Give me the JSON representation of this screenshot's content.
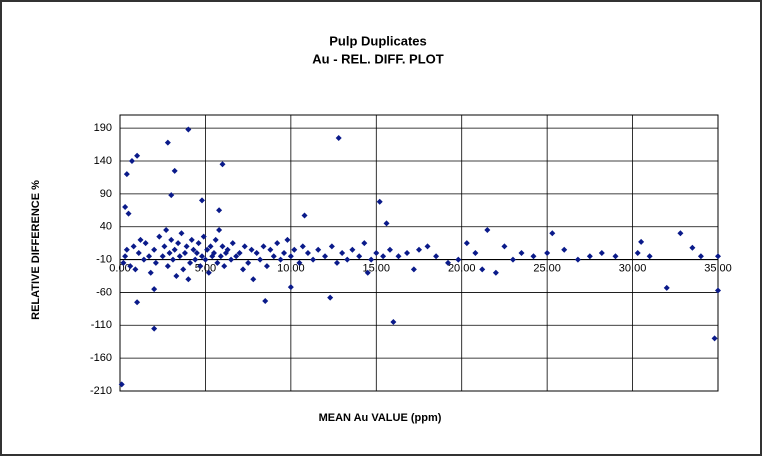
{
  "chart_data": {
    "type": "scatter",
    "title": "Pulp Duplicates",
    "subtitle": "Au -  REL. DIFF. PLOT",
    "x_label": "MEAN  Au VALUE (ppm)",
    "y_label": "RELATIVE  DIFFERENCE  %",
    "color": "#0a1a8a",
    "grid": true,
    "xlim": [
      0,
      35
    ],
    "ylim": [
      -210,
      210
    ],
    "xticks": [
      {
        "value": 0,
        "label": "0.00"
      },
      {
        "value": 5,
        "label": "5.00"
      },
      {
        "value": 10,
        "label": "10.00"
      },
      {
        "value": 15,
        "label": "15.00"
      },
      {
        "value": 20,
        "label": "20.00"
      },
      {
        "value": 25,
        "label": "25.00"
      },
      {
        "value": 30,
        "label": "30.00"
      },
      {
        "value": 35,
        "label": "35.00"
      }
    ],
    "yticks": [
      190,
      140,
      90,
      40,
      -10,
      -60,
      -110,
      -160,
      -210
    ],
    "x": [
      0.1,
      0.3,
      0.4,
      0.7,
      1.0,
      0.5,
      1.0,
      2.0,
      2.0,
      2.8,
      3.2,
      3.0,
      4.0,
      4.8,
      6.0,
      5.8,
      12.8,
      15.2,
      15.6,
      16.0,
      8.5,
      10.0,
      12.3,
      10.8,
      32.0,
      35.0,
      34.8,
      32.8,
      33.5,
      30.5,
      25.3,
      21.5,
      14.5,
      35.0,
      0.2,
      0.3,
      0.4,
      0.6,
      0.8,
      0.9,
      1.1,
      1.2,
      1.4,
      1.5,
      1.7,
      1.8,
      2.0,
      2.1,
      2.3,
      2.5,
      2.6,
      2.7,
      2.8,
      2.9,
      3.0,
      3.1,
      3.2,
      3.3,
      3.4,
      3.5,
      3.6,
      3.7,
      3.8,
      3.9,
      4.0,
      4.1,
      4.2,
      4.3,
      4.4,
      4.5,
      4.6,
      4.7,
      4.8,
      4.9,
      5.0,
      5.1,
      5.2,
      5.3,
      5.4,
      5.5,
      5.6,
      5.7,
      5.8,
      5.9,
      6.0,
      6.1,
      6.2,
      6.3,
      6.5,
      6.6,
      6.8,
      7.0,
      7.2,
      7.3,
      7.5,
      7.7,
      7.8,
      8.0,
      8.2,
      8.4,
      8.6,
      8.8,
      9.0,
      9.2,
      9.4,
      9.6,
      9.8,
      10.0,
      10.2,
      10.5,
      10.7,
      11.0,
      11.3,
      11.6,
      12.0,
      12.4,
      12.7,
      13.0,
      13.3,
      13.6,
      14.0,
      14.3,
      14.7,
      15.0,
      15.4,
      15.8,
      16.3,
      16.8,
      17.2,
      17.5,
      18.0,
      18.5,
      19.2,
      19.8,
      20.3,
      20.8,
      21.2,
      22.0,
      22.5,
      23.0,
      23.5,
      24.2,
      25.0,
      26.0,
      26.8,
      27.5,
      28.2,
      29.0,
      30.3,
      31.0,
      34.0
    ],
    "values": [
      -200,
      70,
      120,
      140,
      148,
      60,
      -75,
      -115,
      -55,
      168,
      125,
      88,
      188,
      80,
      135,
      65,
      175,
      78,
      45,
      -105,
      -73,
      -52,
      -68,
      57,
      -53,
      -57,
      -130,
      30,
      8,
      17,
      30,
      35,
      -30,
      -5,
      -15,
      -5,
      5,
      -20,
      10,
      -25,
      0,
      20,
      -10,
      15,
      -5,
      -30,
      5,
      -15,
      25,
      -5,
      10,
      35,
      -20,
      0,
      20,
      -10,
      5,
      -35,
      15,
      -5,
      30,
      -25,
      0,
      10,
      -40,
      -15,
      20,
      5,
      -10,
      0,
      15,
      -20,
      -5,
      25,
      -10,
      5,
      -30,
      10,
      -5,
      0,
      20,
      -15,
      35,
      -5,
      10,
      -20,
      0,
      5,
      -10,
      15,
      -5,
      0,
      -25,
      10,
      -15,
      5,
      -40,
      0,
      -10,
      10,
      -20,
      5,
      -5,
      15,
      -10,
      0,
      20,
      -5,
      5,
      -15,
      10,
      0,
      -10,
      5,
      -5,
      10,
      -15,
      0,
      -10,
      5,
      -5,
      15,
      -10,
      0,
      -5,
      5,
      -5,
      0,
      -25,
      5,
      10,
      -5,
      -15,
      -10,
      15,
      0,
      -25,
      -30,
      10,
      -10,
      0,
      -5,
      0,
      5,
      -10,
      -5,
      0,
      -5,
      0,
      -5,
      -5
    ]
  }
}
